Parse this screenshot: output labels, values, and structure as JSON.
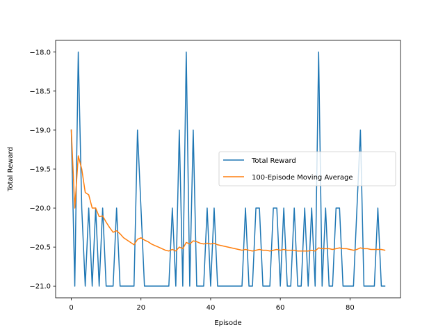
{
  "chart_data": {
    "type": "line",
    "title": "",
    "xlabel": "Episode",
    "ylabel": "Total Reward",
    "xlim": [
      -4.5,
      94.5
    ],
    "ylim": [
      -21.15,
      -17.85
    ],
    "x_ticks": [
      0,
      20,
      40,
      60,
      80
    ],
    "y_ticks": [
      -21.0,
      -20.5,
      -20.0,
      -19.5,
      -19.0,
      -18.5,
      -18.0
    ],
    "x_tick_labels": [
      "0",
      "20",
      "40",
      "60",
      "80"
    ],
    "y_tick_labels": [
      "−21.0",
      "−20.5",
      "−20.0",
      "−19.5",
      "−19.0",
      "−18.5",
      "−18.0"
    ],
    "grid": false,
    "legend_placement": "center-right",
    "series": [
      {
        "name": "Total Reward",
        "color": "#1f77b4",
        "values": [
          -19,
          -21,
          -18,
          -20,
          -21,
          -20,
          -21,
          -20,
          -21,
          -20,
          -21,
          -21,
          -21,
          -20,
          -21,
          -21,
          -21,
          -21,
          -21,
          -19,
          -20,
          -21,
          -21,
          -21,
          -21,
          -21,
          -21,
          -21,
          -21,
          -20,
          -21,
          -19,
          -21,
          -18,
          -21,
          -19,
          -21,
          -21,
          -21,
          -20,
          -21,
          -20,
          -21,
          -21,
          -21,
          -21,
          -21,
          -21,
          -21,
          -21,
          -20,
          -21,
          -21,
          -20,
          -20,
          -21,
          -21,
          -21,
          -20,
          -20,
          -21,
          -20,
          -21,
          -21,
          -20,
          -21,
          -21,
          -20,
          -21,
          -20,
          -21,
          -18,
          -21,
          -20,
          -21,
          -21,
          -20,
          -20,
          -21,
          -21,
          -21,
          -21,
          -20,
          -19,
          -21,
          -21,
          -21,
          -21,
          -20,
          -21,
          -21
        ]
      },
      {
        "name": "100-Episode Moving Average",
        "color": "#ff7f0e",
        "values": [
          -19.0,
          -20.0,
          -19.33,
          -19.5,
          -19.8,
          -19.83,
          -20.0,
          -20.0,
          -20.11,
          -20.1,
          -20.18,
          -20.25,
          -20.31,
          -20.29,
          -20.33,
          -20.38,
          -20.41,
          -20.44,
          -20.47,
          -20.4,
          -20.38,
          -20.41,
          -20.43,
          -20.46,
          -20.48,
          -20.5,
          -20.52,
          -20.54,
          -20.55,
          -20.53,
          -20.55,
          -20.5,
          -20.52,
          -20.44,
          -20.46,
          -20.42,
          -20.43,
          -20.45,
          -20.46,
          -20.45,
          -20.46,
          -20.45,
          -20.47,
          -20.48,
          -20.49,
          -20.5,
          -20.51,
          -20.52,
          -20.53,
          -20.54,
          -20.53,
          -20.54,
          -20.55,
          -20.54,
          -20.53,
          -20.54,
          -20.54,
          -20.55,
          -20.54,
          -20.53,
          -20.54,
          -20.53,
          -20.54,
          -20.54,
          -20.54,
          -20.55,
          -20.55,
          -20.55,
          -20.55,
          -20.54,
          -20.55,
          -20.51,
          -20.52,
          -20.52,
          -20.52,
          -20.53,
          -20.52,
          -20.51,
          -20.52,
          -20.52,
          -20.53,
          -20.54,
          -20.53,
          -20.51,
          -20.52,
          -20.52,
          -20.53,
          -20.53,
          -20.53,
          -20.53,
          -20.54
        ]
      }
    ]
  }
}
